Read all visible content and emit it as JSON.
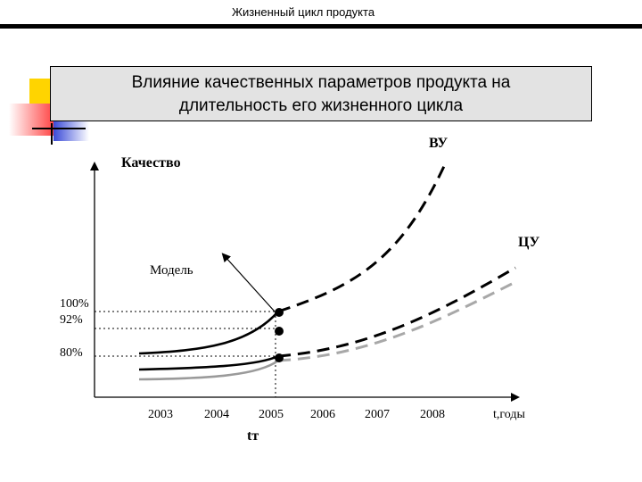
{
  "header": {
    "title": "Жизненный цикл продукта"
  },
  "slide": {
    "title_line1": "Влияние  качественных параметров продукта  на",
    "title_line2": "длительность его жизненного цикла"
  },
  "diagram": {
    "y_axis_label": "Качество",
    "model_label": "Модель",
    "y_ticks": [
      "100%",
      "92%",
      "80%"
    ],
    "x_ticks": [
      "2003",
      "2004",
      "2005",
      "2006",
      "2007",
      "2008"
    ],
    "x_axis_label": "t,годы",
    "marker_label": "tт",
    "curve_labels": [
      "ВУ",
      "ЦУ"
    ]
  }
}
